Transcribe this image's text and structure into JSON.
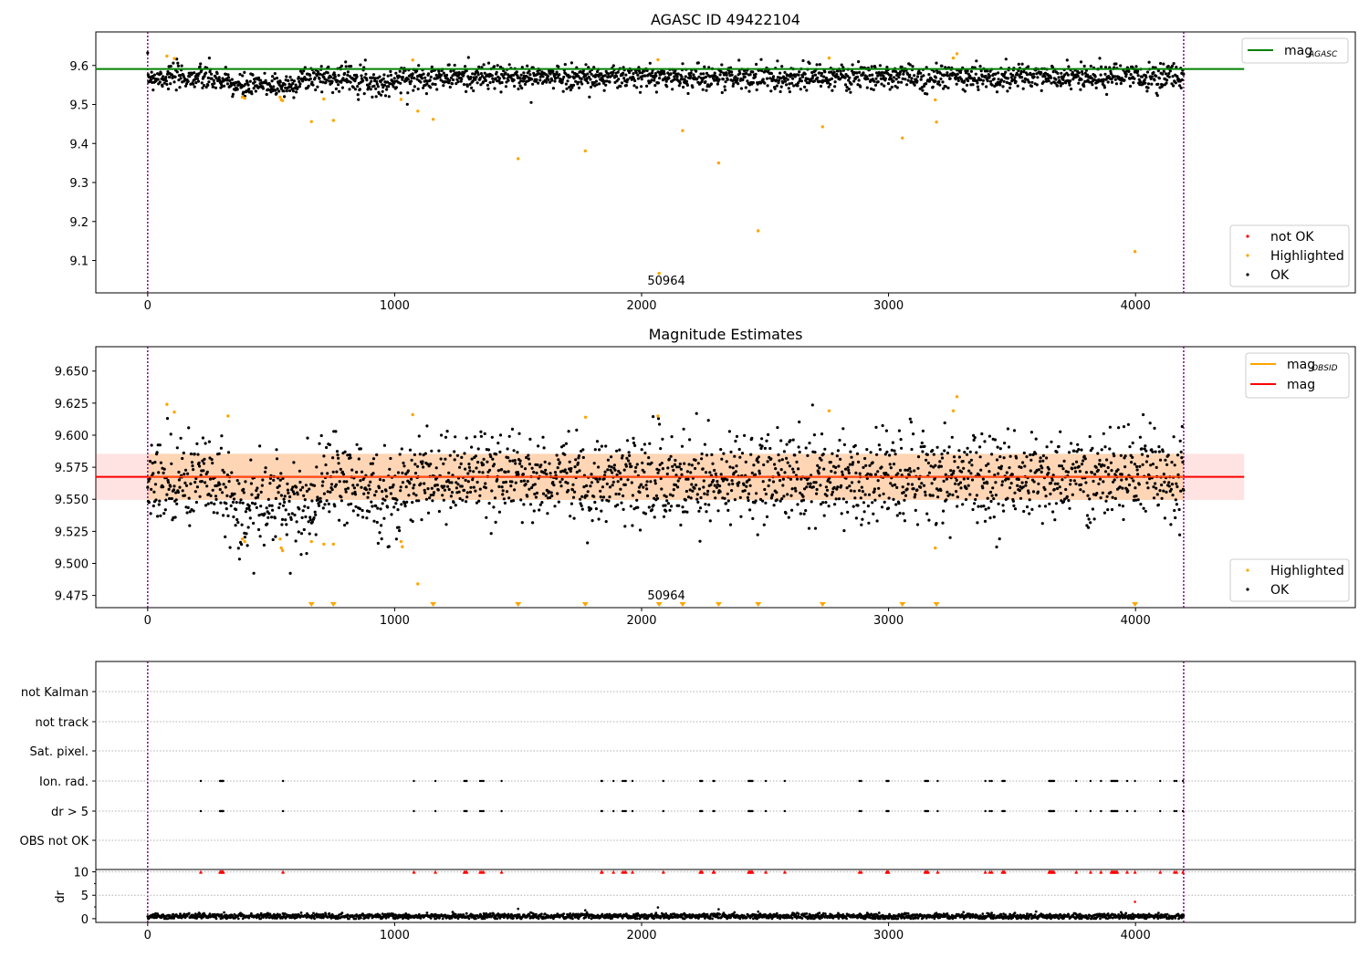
{
  "chart_data": [
    {
      "type": "scatter",
      "title": "AGASC ID 49422104",
      "xlim": [
        -210,
        4890
      ],
      "ylim": [
        9.017,
        9.686
      ],
      "yticks": [
        "9.1",
        "9.2",
        "9.3",
        "9.4",
        "9.5",
        "9.6"
      ],
      "xticks": [
        "0",
        "1000",
        "2000",
        "3000",
        "4000"
      ],
      "obsid_label": "50964",
      "obsid_label_x": 2100,
      "vlines_x": [
        0,
        4195
      ],
      "hline": {
        "name": "mag",
        "subscript": "AGASC",
        "value": 9.591,
        "x_range": [
          -210,
          4440
        ],
        "color": "#008000"
      },
      "legend_lines": [
        {
          "name": "mag",
          "subscript": "AGASC",
          "color": "#008000"
        }
      ],
      "legend_points": [
        {
          "name": "not OK",
          "color": "#ff0000"
        },
        {
          "name": "Highlighted",
          "color": "#ffa500"
        },
        {
          "name": "OK",
          "color": "#000000"
        }
      ],
      "ok_series": {
        "name": "OK",
        "color": "#000000",
        "x_range": [
          0,
          4195
        ],
        "count": 2100,
        "center": 9.57,
        "sd": 0.016,
        "dips": [
          [
            400,
            110,
            -0.025
          ],
          [
            560,
            60,
            -0.02
          ],
          [
            950,
            60,
            -0.02
          ]
        ]
      },
      "highlighted": {
        "name": "Highlighted",
        "color": "#ffa500",
        "x": [
          78,
          108,
          383,
          393,
          536,
          541,
          546,
          663,
          713,
          752,
          1026,
          1073,
          1094,
          1156,
          1500,
          1772,
          2066,
          2071,
          2166,
          2312,
          2472,
          2733,
          2759,
          3056,
          3189,
          3194,
          3262,
          3277,
          3998
        ],
        "y": [
          9.624,
          9.618,
          9.519,
          9.516,
          9.519,
          9.512,
          9.51,
          9.456,
          9.514,
          9.459,
          9.513,
          9.614,
          9.483,
          9.462,
          9.361,
          9.381,
          9.615,
          9.067,
          9.433,
          9.35,
          9.176,
          9.443,
          9.619,
          9.414,
          9.512,
          9.455,
          9.619,
          9.63,
          9.123
        ]
      }
    },
    {
      "type": "scatter",
      "title": "Magnitude Estimates",
      "xlim": [
        -210,
        4890
      ],
      "ylim": [
        9.4655,
        9.669
      ],
      "yticks": [
        "9.475",
        "9.500",
        "9.525",
        "9.550",
        "9.575",
        "9.600",
        "9.625",
        "9.650"
      ],
      "xticks": [
        "0",
        "1000",
        "2000",
        "3000",
        "4000"
      ],
      "obsid_label": "50964",
      "obsid_label_x": 2100,
      "vlines_x": [
        0,
        4195
      ],
      "band": {
        "low": 9.5495,
        "high": 9.5855,
        "x_range": [
          -210,
          4440
        ],
        "color": "#ff0000",
        "alpha": 0.11
      },
      "band_obs": {
        "low": 9.5495,
        "high": 9.5855,
        "x_range": [
          0,
          4195
        ],
        "color": "#ffa500",
        "alpha": 0.2
      },
      "hline_mag": {
        "name": "mag",
        "value": 9.5675,
        "color": "#ff0000"
      },
      "hline_obs": {
        "name": "mag",
        "subscript": "OBSID",
        "value": 9.5675,
        "color": "#ffa500"
      },
      "legend_lines": [
        {
          "name": "mag",
          "subscript": "OBSID",
          "color": "#ffa500"
        },
        {
          "name": "mag",
          "subscript": "",
          "color": "#ff0000"
        }
      ],
      "legend_points": [
        {
          "name": "Highlighted",
          "color": "#ffa500"
        },
        {
          "name": "OK",
          "color": "#000000"
        }
      ],
      "ok_series": {
        "name": "OK",
        "color": "#000000",
        "x_range": [
          0,
          4195
        ],
        "count": 2100,
        "center": 9.567,
        "sd": 0.017,
        "dips": [
          [
            420,
            130,
            -0.025
          ],
          [
            620,
            80,
            -0.02
          ],
          [
            960,
            70,
            -0.02
          ]
        ]
      },
      "highlighted": {
        "name": "Highlighted",
        "color": "#ffa500",
        "x": [
          78,
          108,
          325,
          383,
          393,
          536,
          541,
          546,
          663,
          713,
          752,
          1026,
          1031,
          1073,
          1094,
          1773,
          2066,
          2759,
          3189,
          3262,
          3277
        ],
        "y": [
          9.624,
          9.618,
          9.615,
          9.519,
          9.517,
          9.519,
          9.512,
          9.51,
          9.517,
          9.515,
          9.515,
          9.517,
          9.513,
          9.616,
          9.484,
          9.614,
          9.615,
          9.619,
          9.512,
          9.619,
          9.63
        ]
      },
      "below_range_markers_x": [
        663,
        752,
        1156,
        1500,
        1772,
        2071,
        2166,
        2312,
        2472,
        2733,
        3056,
        3194,
        3998
      ]
    },
    {
      "type": "scatter",
      "title": "",
      "xlim": [
        -210,
        4890
      ],
      "xticks": [
        "0",
        "1000",
        "2000",
        "3000",
        "4000"
      ],
      "vlines_x": [
        0,
        4195
      ],
      "flag_rows": [
        "not Kalman",
        "not track",
        "Sat. pixel.",
        "Ion. rad.",
        "dr > 5",
        "OBS not OK"
      ],
      "flag_x": [
        215,
        293,
        296,
        300,
        303,
        306,
        548,
        1078,
        1165,
        1282,
        1287,
        1292,
        1346,
        1353,
        1360,
        1433,
        1837,
        1840,
        1886,
        1923,
        1930,
        1936,
        1963,
        2088,
        2237,
        2241,
        2245,
        2290,
        2294,
        2433,
        2437,
        2441,
        2445,
        2449,
        2503,
        2580,
        2882,
        2889,
        2992,
        2996,
        3000,
        3148,
        3152,
        3156,
        3160,
        3199,
        3392,
        3410,
        3418,
        3461,
        3466,
        3470,
        3650,
        3654,
        3658,
        3662,
        3666,
        3670,
        3760,
        3818,
        3860,
        3902,
        3906,
        3910,
        3914,
        3918,
        3922,
        3926,
        3966,
        3998,
        4100,
        4158,
        4166,
        4192
      ],
      "dr": {
        "ylabel": "dr",
        "yticks": [
          "0",
          "5",
          "10"
        ],
        "ylim": [
          -0.8,
          10.5
        ],
        "clip": 10,
        "color": "#000000",
        "clipped_color": "#ff0000",
        "x_range": [
          0,
          4195
        ],
        "count": 2100,
        "center": 0.5,
        "spread": 0.6,
        "extra_points": {
          "x": [
            1500,
            2312,
            1772,
            3998,
            2066,
            2472
          ],
          "y": [
            2.1,
            2.0,
            1.8,
            3.6,
            2.4,
            1.5
          ]
        }
      }
    }
  ]
}
